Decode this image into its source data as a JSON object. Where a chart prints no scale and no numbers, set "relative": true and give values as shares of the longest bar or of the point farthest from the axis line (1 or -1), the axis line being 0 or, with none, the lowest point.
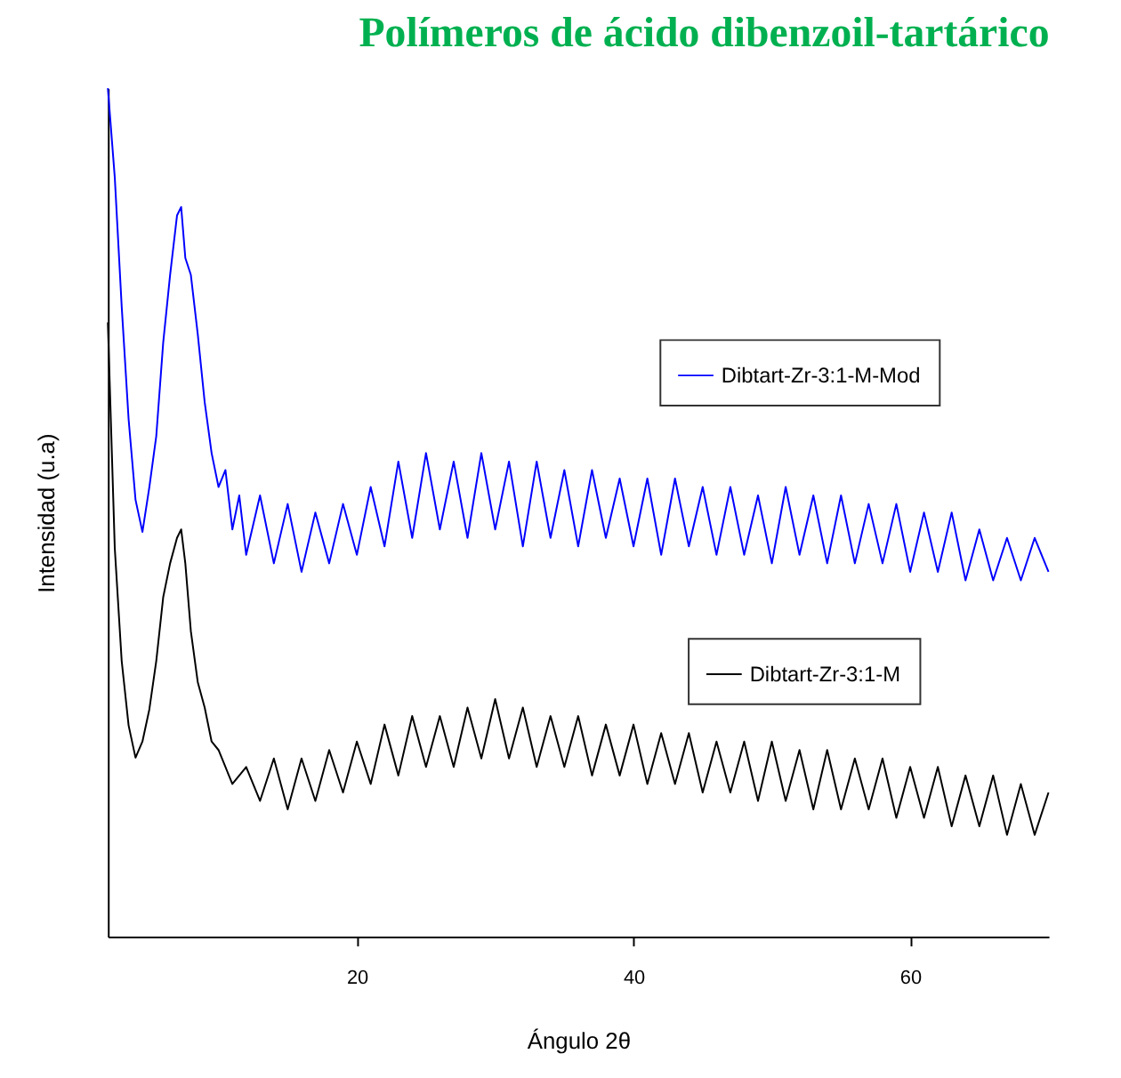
{
  "chart_data": {
    "type": "line",
    "title": "Polímeros de ácido dibenzoil-tartárico",
    "xlabel": "Ángulo 2θ",
    "ylabel": "Intensidad (u.a)",
    "relative": true,
    "xlim": [
      2,
      70
    ],
    "xticks": [
      20,
      40,
      60
    ],
    "grid": false,
    "legend": "right",
    "tick_labels": "x",
    "line_style": "solid",
    "marker": "none",
    "series": [
      {
        "name": "Dibtart-Zr-3:1-M-Mod",
        "color": "#0000ff",
        "x": [
          2,
          2.5,
          3,
          3.5,
          4,
          4.5,
          5,
          5.5,
          6,
          6.5,
          7,
          7.3,
          7.6,
          8,
          8.5,
          9,
          9.5,
          10,
          10.5,
          11,
          11.5,
          12,
          13,
          14,
          15,
          16,
          17,
          18,
          19,
          20,
          21,
          22,
          23,
          24,
          25,
          26,
          27,
          28,
          29,
          30,
          31,
          32,
          33,
          34,
          35,
          36,
          37,
          38,
          39,
          40,
          41,
          42,
          43,
          44,
          45,
          46,
          47,
          48,
          49,
          50,
          51,
          52,
          53,
          54,
          55,
          56,
          57,
          58,
          59,
          60,
          61,
          62,
          63,
          64,
          65,
          66,
          67,
          68,
          69,
          70
        ],
        "values": [
          1.0,
          0.895,
          0.743,
          0.61,
          0.515,
          0.477,
          0.53,
          0.59,
          0.7,
          0.78,
          0.85,
          0.86,
          0.8,
          0.78,
          0.71,
          0.63,
          0.57,
          0.53,
          0.55,
          0.48,
          0.52,
          0.45,
          0.52,
          0.44,
          0.51,
          0.43,
          0.5,
          0.44,
          0.51,
          0.45,
          0.53,
          0.46,
          0.56,
          0.47,
          0.57,
          0.48,
          0.56,
          0.47,
          0.57,
          0.48,
          0.56,
          0.46,
          0.56,
          0.47,
          0.55,
          0.46,
          0.55,
          0.47,
          0.54,
          0.46,
          0.54,
          0.45,
          0.54,
          0.46,
          0.53,
          0.45,
          0.53,
          0.45,
          0.52,
          0.44,
          0.53,
          0.45,
          0.52,
          0.44,
          0.52,
          0.44,
          0.51,
          0.44,
          0.51,
          0.43,
          0.5,
          0.43,
          0.5,
          0.42,
          0.48,
          0.42,
          0.47,
          0.42,
          0.47,
          0.43
        ]
      },
      {
        "name": "Dibtart-Zr-3:1-M",
        "color": "#000000",
        "x": [
          2,
          2.5,
          3,
          3.5,
          4,
          4.5,
          5,
          5.5,
          6,
          6.5,
          7,
          7.3,
          7.6,
          8,
          8.5,
          9,
          9.5,
          10,
          11,
          12,
          13,
          14,
          15,
          16,
          17,
          18,
          19,
          20,
          21,
          22,
          23,
          24,
          25,
          26,
          27,
          28,
          29,
          30,
          31,
          32,
          33,
          34,
          35,
          36,
          37,
          38,
          39,
          40,
          41,
          42,
          43,
          44,
          45,
          46,
          47,
          48,
          49,
          50,
          51,
          52,
          53,
          54,
          55,
          56,
          57,
          58,
          59,
          60,
          61,
          62,
          63,
          64,
          65,
          66,
          67,
          68,
          69,
          70
        ],
        "values": [
          0.724,
          0.458,
          0.325,
          0.249,
          0.211,
          0.23,
          0.268,
          0.325,
          0.4,
          0.44,
          0.47,
          0.48,
          0.44,
          0.36,
          0.3,
          0.27,
          0.23,
          0.22,
          0.18,
          0.2,
          0.16,
          0.21,
          0.15,
          0.21,
          0.16,
          0.22,
          0.17,
          0.23,
          0.18,
          0.25,
          0.19,
          0.26,
          0.2,
          0.26,
          0.2,
          0.27,
          0.21,
          0.28,
          0.21,
          0.27,
          0.2,
          0.26,
          0.2,
          0.26,
          0.19,
          0.25,
          0.19,
          0.25,
          0.18,
          0.24,
          0.18,
          0.24,
          0.17,
          0.23,
          0.17,
          0.23,
          0.16,
          0.23,
          0.16,
          0.22,
          0.15,
          0.22,
          0.15,
          0.21,
          0.15,
          0.21,
          0.14,
          0.2,
          0.14,
          0.2,
          0.13,
          0.19,
          0.13,
          0.19,
          0.12,
          0.18,
          0.12,
          0.17
        ]
      }
    ]
  }
}
